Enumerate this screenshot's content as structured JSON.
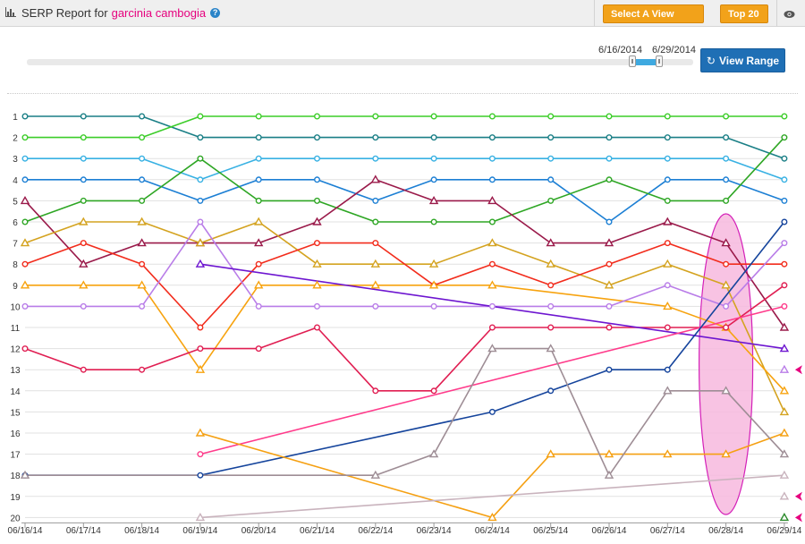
{
  "header": {
    "title_prefix": "SERP Report for",
    "keyword": "garcinia cambogia",
    "help_icon": "?",
    "select_range_label": "Select A View Range",
    "top_label": "Top 20",
    "eye_icon": "eye-icon"
  },
  "range": {
    "start_label": "6/16/2014",
    "end_label": "6/29/2014",
    "button_label": "View Range",
    "button_icon": "refresh-icon"
  },
  "colors": {
    "accent_orange": "#f2a21a",
    "button_blue": "#1f6fb5",
    "keyword_pink": "#e6007e",
    "highlight": "#f7b8de",
    "arrow": "#e6007e"
  },
  "chart_data": {
    "type": "line",
    "title": "",
    "xlabel": "",
    "ylabel": "",
    "categories": [
      "06/16/14",
      "06/17/14",
      "06/18/14",
      "06/19/14",
      "06/20/14",
      "06/21/14",
      "06/22/14",
      "06/23/14",
      "06/24/14",
      "06/25/14",
      "06/26/14",
      "06/27/14",
      "06/28/14",
      "06/29/14"
    ],
    "y_ticks": [
      1,
      2,
      3,
      4,
      5,
      6,
      7,
      8,
      9,
      10,
      11,
      12,
      13,
      14,
      15,
      16,
      17,
      18,
      19,
      20
    ],
    "ylim": [
      1,
      20
    ],
    "y_inverted": true,
    "grid": true,
    "highlight_category": "06/28/14",
    "series": [
      {
        "color": "#1a7f86",
        "marker": "circle",
        "values": [
          1,
          1,
          1,
          2,
          2,
          2,
          2,
          2,
          2,
          2,
          2,
          2,
          2,
          3
        ]
      },
      {
        "color": "#3ccd29",
        "marker": "circle",
        "values": [
          2,
          2,
          2,
          1,
          1,
          1,
          1,
          1,
          1,
          1,
          1,
          1,
          1,
          1
        ]
      },
      {
        "color": "#38b1e3",
        "marker": "circle",
        "values": [
          3,
          3,
          3,
          4,
          3,
          3,
          3,
          3,
          3,
          3,
          3,
          3,
          3,
          4
        ]
      },
      {
        "color": "#1c7fd4",
        "marker": "circle",
        "values": [
          4,
          4,
          4,
          5,
          4,
          4,
          5,
          4,
          4,
          4,
          6,
          4,
          4,
          5
        ]
      },
      {
        "color": "#2ea624",
        "marker": "circle",
        "values": [
          6,
          5,
          5,
          3,
          5,
          5,
          6,
          6,
          6,
          5,
          4,
          5,
          5,
          2
        ]
      },
      {
        "color": "#9a1a4a",
        "marker": "triangle",
        "values": [
          5,
          8,
          7,
          7,
          7,
          6,
          4,
          5,
          5,
          7,
          7,
          6,
          7,
          11
        ]
      },
      {
        "color": "#d4a320",
        "marker": "triangle",
        "values": [
          7,
          6,
          6,
          7,
          6,
          8,
          8,
          8,
          7,
          8,
          9,
          8,
          9,
          15
        ]
      },
      {
        "color": "#f22c1c",
        "marker": "circle",
        "values": [
          8,
          7,
          8,
          11,
          8,
          7,
          7,
          9,
          8,
          9,
          8,
          7,
          8,
          8
        ]
      },
      {
        "color": "#f7a30f",
        "marker": "triangle",
        "values": [
          9,
          9,
          9,
          13,
          9,
          9,
          9,
          9,
          9,
          null,
          null,
          10,
          11,
          14
        ]
      },
      {
        "color": "#b97de8",
        "marker": "circle",
        "values": [
          10,
          10,
          10,
          6,
          10,
          10,
          10,
          10,
          10,
          10,
          10,
          9,
          10,
          7
        ]
      },
      {
        "color": "#e01e52",
        "marker": "circle",
        "values": [
          12,
          13,
          13,
          12,
          12,
          11,
          14,
          14,
          11,
          11,
          11,
          11,
          11,
          9
        ]
      },
      {
        "color": "#6d15d0",
        "marker": "triangle",
        "values": [
          null,
          null,
          null,
          8,
          null,
          null,
          null,
          null,
          null,
          null,
          null,
          null,
          null,
          12
        ]
      },
      {
        "color": "#ff3b8b",
        "marker": "circle",
        "values": [
          null,
          null,
          null,
          17,
          null,
          null,
          null,
          null,
          null,
          null,
          null,
          null,
          null,
          10
        ]
      },
      {
        "color": "#15449c",
        "marker": "circle",
        "values": [
          18,
          null,
          null,
          18,
          null,
          null,
          null,
          null,
          15,
          14,
          13,
          13,
          null,
          6
        ]
      },
      {
        "color": "#f5a012",
        "marker": "triangle",
        "values": [
          null,
          null,
          null,
          16,
          null,
          null,
          null,
          null,
          20,
          17,
          17,
          17,
          17,
          16
        ]
      },
      {
        "color": "#9e8d95",
        "marker": "triangle",
        "values": [
          18,
          null,
          null,
          null,
          null,
          null,
          18,
          17,
          12,
          12,
          18,
          14,
          14,
          17
        ]
      },
      {
        "color": "#c9b3bd",
        "marker": "triangle",
        "values": [
          null,
          null,
          null,
          20,
          null,
          null,
          null,
          null,
          null,
          null,
          null,
          null,
          null,
          18
        ]
      }
    ],
    "edge_markers": [
      {
        "color": "#b97de8",
        "marker": "triangle",
        "rank": 13,
        "arrow": true
      },
      {
        "color": "#c9b3bd",
        "marker": "triangle",
        "rank": 19,
        "arrow": true
      },
      {
        "color": "#2a8a2a",
        "marker": "triangle",
        "rank": 20,
        "arrow": true
      }
    ]
  }
}
